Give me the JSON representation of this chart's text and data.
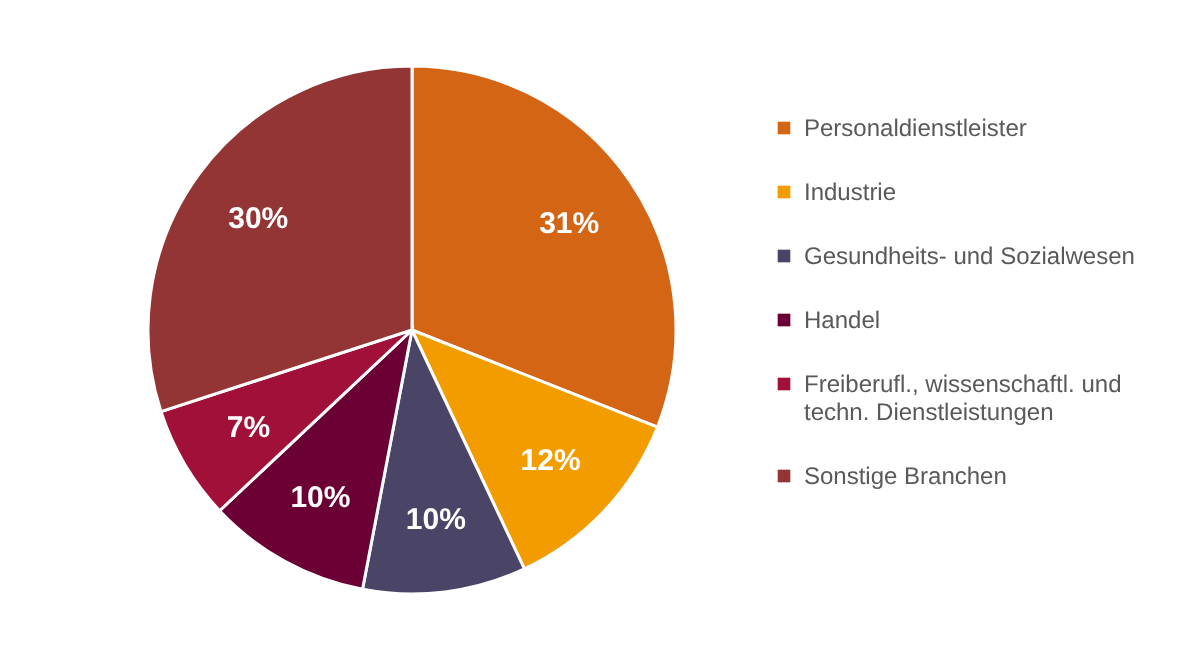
{
  "chart_data": {
    "type": "pie",
    "categories": [
      "Personaldienstleister",
      "Industrie",
      "Gesundheits- und Sozialwesen",
      "Handel",
      "Freiberufl., wissenschaftl. und techn. Dienstleistungen",
      "Sonstige Branchen"
    ],
    "values": [
      31,
      12,
      10,
      10,
      7,
      30
    ],
    "colors": [
      "#d46515",
      "#f39c00",
      "#4a4466",
      "#6a0034",
      "#a11038",
      "#933534"
    ],
    "value_labels": [
      "31%",
      "12%",
      "10%",
      "10%",
      "7%",
      "30%"
    ],
    "legend": "right"
  }
}
